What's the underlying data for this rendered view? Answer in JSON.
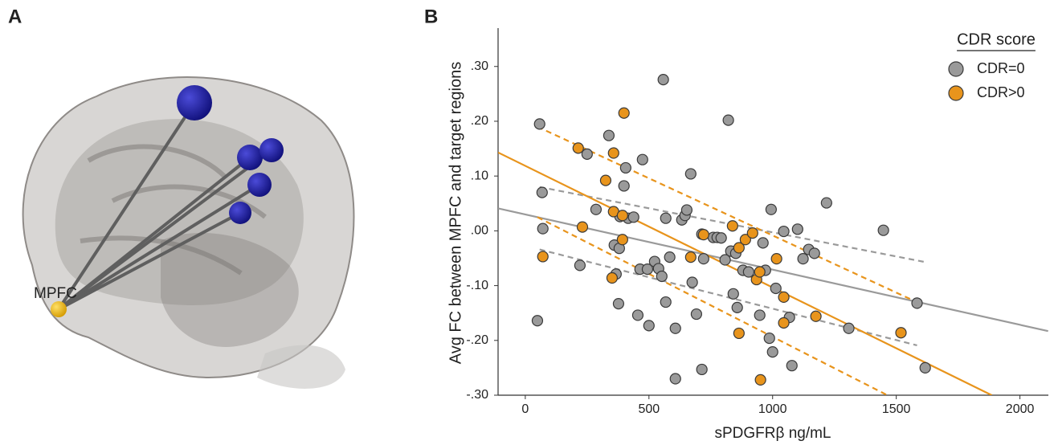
{
  "panel_a": {
    "label": "A",
    "node_label": "MPFC"
  },
  "chart_data": {
    "type": "scatter",
    "panel_label": "B",
    "x_label": "sPDGFRβ ng/mL",
    "y_label": "Avg FC between MPFC and target regions",
    "legend_title": "CDR score",
    "legend": "upper right",
    "grid": false,
    "xlim": [
      -110,
      2115
    ],
    "ylim": [
      -0.3,
      0.37
    ],
    "xticks": [
      0,
      500,
      1000,
      1500,
      2000
    ],
    "yticks": [
      {
        "value": 0.3,
        "label": ".30"
      },
      {
        "value": 0.2,
        "label": ".20"
      },
      {
        "value": 0.1,
        "label": ".10"
      },
      {
        "value": 0.0,
        "label": ".00"
      },
      {
        "value": -0.1,
        "label": "-.10"
      },
      {
        "value": -0.2,
        "label": "-.20"
      },
      {
        "value": -0.3,
        "label": "-.30"
      }
    ],
    "series": [
      {
        "name": "CDR=0",
        "color": "#9a9a9a",
        "x": [
          49,
          58,
          68,
          71,
          221,
          250,
          286,
          360,
          367,
          377,
          338,
          380,
          399,
          406,
          383,
          416,
          438,
          455,
          474,
          464,
          500,
          494,
          523,
          539,
          552,
          558,
          568,
          568,
          584,
          607,
          607,
          633,
          646,
          653,
          669,
          675,
          692,
          714,
          714,
          721,
          760,
          776,
          792,
          808,
          821,
          831,
          841,
          851,
          857,
          880,
          903,
          948,
          961,
          971,
          987,
          994,
          1000,
          1013,
          1045,
          1068,
          1078,
          1101,
          1123,
          1146,
          1169,
          1218,
          1308,
          1448,
          1584,
          1617
        ],
        "values": [
          -0.164,
          0.195,
          0.07,
          0.004,
          -0.063,
          0.14,
          0.039,
          -0.026,
          -0.079,
          -0.133,
          0.174,
          -0.032,
          0.082,
          0.115,
          0.026,
          0.023,
          0.025,
          -0.154,
          0.13,
          -0.07,
          -0.173,
          -0.07,
          -0.056,
          -0.069,
          -0.083,
          0.276,
          0.023,
          -0.13,
          -0.048,
          -0.178,
          -0.27,
          0.02,
          0.028,
          0.038,
          0.104,
          -0.094,
          -0.152,
          -0.253,
          -0.006,
          -0.051,
          -0.012,
          -0.012,
          -0.013,
          -0.053,
          0.202,
          -0.037,
          -0.115,
          -0.041,
          -0.14,
          -0.072,
          -0.075,
          -0.154,
          -0.022,
          -0.072,
          -0.196,
          0.039,
          -0.221,
          -0.105,
          -0.001,
          -0.158,
          -0.246,
          0.003,
          -0.051,
          -0.034,
          -0.041,
          0.051,
          -0.178,
          0.001,
          -0.132,
          -0.25
        ],
        "fit": {
          "x": [
            -110,
            2114
          ],
          "y": [
            0.041,
            -0.183
          ]
        },
        "ci_upper": {
          "x": [
            58,
            1617
          ],
          "y": [
            0.08,
            -0.057
          ]
        },
        "ci_lower": {
          "x": [
            58,
            1584
          ],
          "y": [
            -0.034,
            -0.209
          ]
        }
      },
      {
        "name": "CDR>0",
        "color": "#e8941c",
        "x": [
          214,
          231,
          71,
          325,
          357,
          399,
          357,
          393,
          393,
          351,
          669,
          721,
          838,
          864,
          890,
          919,
          935,
          948,
          864,
          951,
          1016,
          1045,
          1045,
          1175,
          1519
        ],
        "values": [
          0.151,
          0.007,
          -0.047,
          0.092,
          0.142,
          0.215,
          0.035,
          0.028,
          -0.016,
          -0.086,
          -0.048,
          -0.007,
          0.009,
          -0.031,
          -0.016,
          -0.004,
          -0.089,
          -0.075,
          -0.187,
          -0.272,
          -0.051,
          -0.121,
          -0.168,
          -0.156,
          -0.186
        ],
        "fit": {
          "x": [
            -110,
            1886
          ],
          "y": [
            0.143,
            -0.3
          ]
        },
        "ci_upper": {
          "x": [
            49,
            1578
          ],
          "y": [
            0.19,
            -0.129
          ]
        },
        "ci_lower": {
          "x": [
            49,
            1464
          ],
          "y": [
            0.025,
            -0.3
          ]
        }
      }
    ]
  }
}
